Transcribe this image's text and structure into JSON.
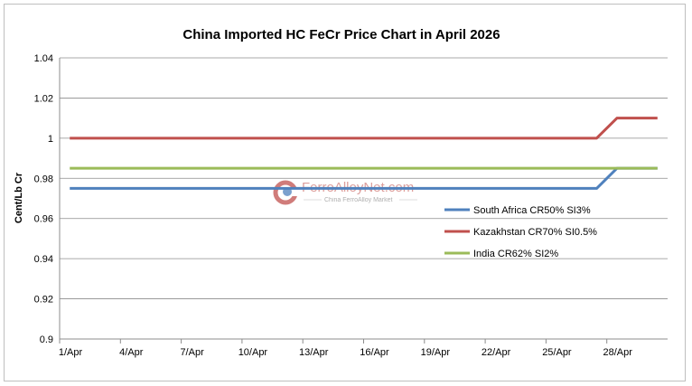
{
  "chart_data": {
    "type": "line",
    "title": "China Imported HC FeCr Price Chart in April 2026",
    "ylabel": "Cent/Lb Cr",
    "xlabel": "",
    "ylim": [
      0.9,
      1.04
    ],
    "yticks": [
      0.9,
      0.92,
      0.94,
      0.96,
      0.98,
      1,
      1.02,
      1.04
    ],
    "ytick_labels": [
      "0.9",
      "0.92",
      "0.94",
      "0.96",
      "0.98",
      "1",
      "1.02",
      "1.04"
    ],
    "x": [
      "1/Apr",
      "2/Apr",
      "3/Apr",
      "4/Apr",
      "5/Apr",
      "6/Apr",
      "7/Apr",
      "8/Apr",
      "9/Apr",
      "10/Apr",
      "11/Apr",
      "12/Apr",
      "13/Apr",
      "14/Apr",
      "15/Apr",
      "16/Apr",
      "17/Apr",
      "18/Apr",
      "19/Apr",
      "20/Apr",
      "21/Apr",
      "22/Apr",
      "23/Apr",
      "24/Apr",
      "25/Apr",
      "26/Apr",
      "27/Apr",
      "28/Apr",
      "29/Apr",
      "30/Apr"
    ],
    "xtick_labels": [
      "1/Apr",
      "4/Apr",
      "7/Apr",
      "10/Apr",
      "13/Apr",
      "16/Apr",
      "19/Apr",
      "22/Apr",
      "25/Apr",
      "28/Apr"
    ],
    "grid": "horizontal",
    "legend_position": "right",
    "series": [
      {
        "name": "South Africa CR50% SI3%",
        "color": "#4f81bd",
        "values": [
          0.975,
          0.975,
          0.975,
          0.975,
          0.975,
          0.975,
          0.975,
          0.975,
          0.975,
          0.975,
          0.975,
          0.975,
          0.975,
          0.975,
          0.975,
          0.975,
          0.975,
          0.975,
          0.975,
          0.975,
          0.975,
          0.975,
          0.975,
          0.975,
          0.975,
          0.975,
          0.975,
          0.985,
          0.985,
          0.985
        ]
      },
      {
        "name": "Kazakhstan CR70% SI0.5%",
        "color": "#c0504d",
        "values": [
          1,
          1,
          1,
          1,
          1,
          1,
          1,
          1,
          1,
          1,
          1,
          1,
          1,
          1,
          1,
          1,
          1,
          1,
          1,
          1,
          1,
          1,
          1,
          1,
          1,
          1,
          1,
          1.01,
          1.01,
          1.01
        ]
      },
      {
        "name": "India CR62% SI2%",
        "color": "#9bbb59",
        "values": [
          0.985,
          0.985,
          0.985,
          0.985,
          0.985,
          0.985,
          0.985,
          0.985,
          0.985,
          0.985,
          0.985,
          0.985,
          0.985,
          0.985,
          0.985,
          0.985,
          0.985,
          0.985,
          0.985,
          0.985,
          0.985,
          0.985,
          0.985,
          0.985,
          0.985,
          0.985,
          0.985,
          0.985,
          0.985,
          0.985
        ]
      }
    ]
  },
  "watermark": {
    "main": "FerroAlloyNet.com",
    "sub": "China FerroAlloy Market"
  }
}
